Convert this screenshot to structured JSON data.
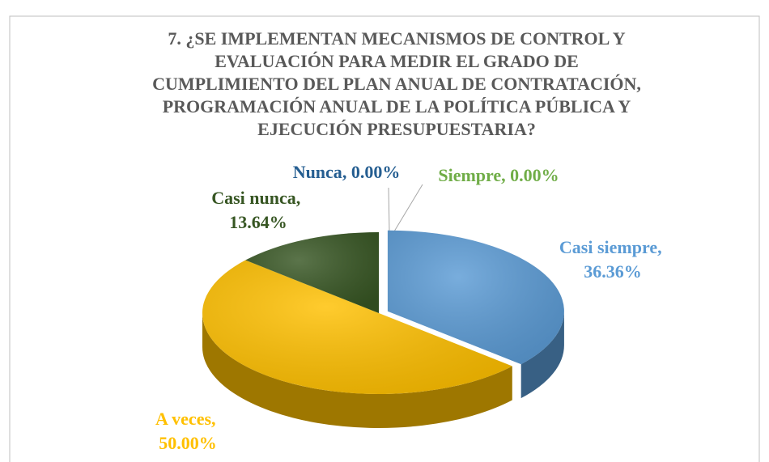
{
  "chart_data": {
    "type": "pie",
    "title": [
      "7. ¿SE IMPLEMENTAN MECANISMOS DE CONTROL Y",
      "EVALUACIÓN PARA MEDIR EL GRADO DE",
      "CUMPLIMIENTO DEL PLAN ANUAL DE CONTRATACIÓN,",
      "PROGRAMACIÓN ANUAL DE LA POLÍTICA PÚBLICA Y",
      "EJECUCIÓN PRESUPUESTARIA?"
    ],
    "categories": [
      "Siempre",
      "Casi siempre",
      "A veces",
      "Casi nunca",
      "Nunca"
    ],
    "values": [
      0,
      36.36,
      50,
      13.64,
      0
    ],
    "value_labels": [
      "0.00%",
      "36.36%",
      "50.00%",
      "13.64%",
      "0.00%"
    ],
    "label_separator": ", ",
    "colors": [
      "#70ad47",
      "#5b9bd5",
      "#ffc000",
      "#375623",
      "#255e91"
    ]
  }
}
